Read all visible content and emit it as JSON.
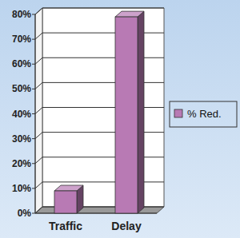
{
  "chart_data": {
    "type": "bar",
    "categories": [
      "Traffic",
      "Delay"
    ],
    "series": [
      {
        "name": "% Red.",
        "color": "#b87ab4",
        "values": [
          9,
          79
        ]
      }
    ],
    "ylim": [
      0,
      80
    ],
    "yticks": [
      {
        "value": 0,
        "label": "0%"
      },
      {
        "value": 10,
        "label": "10%"
      },
      {
        "value": 20,
        "label": "20%"
      },
      {
        "value": 30,
        "label": "30%"
      },
      {
        "value": 40,
        "label": "40%"
      },
      {
        "value": 50,
        "label": "50%"
      },
      {
        "value": 60,
        "label": "60%"
      },
      {
        "value": 70,
        "label": "70%"
      },
      {
        "value": 80,
        "label": "80%"
      }
    ],
    "grid": true,
    "legend": "right"
  }
}
